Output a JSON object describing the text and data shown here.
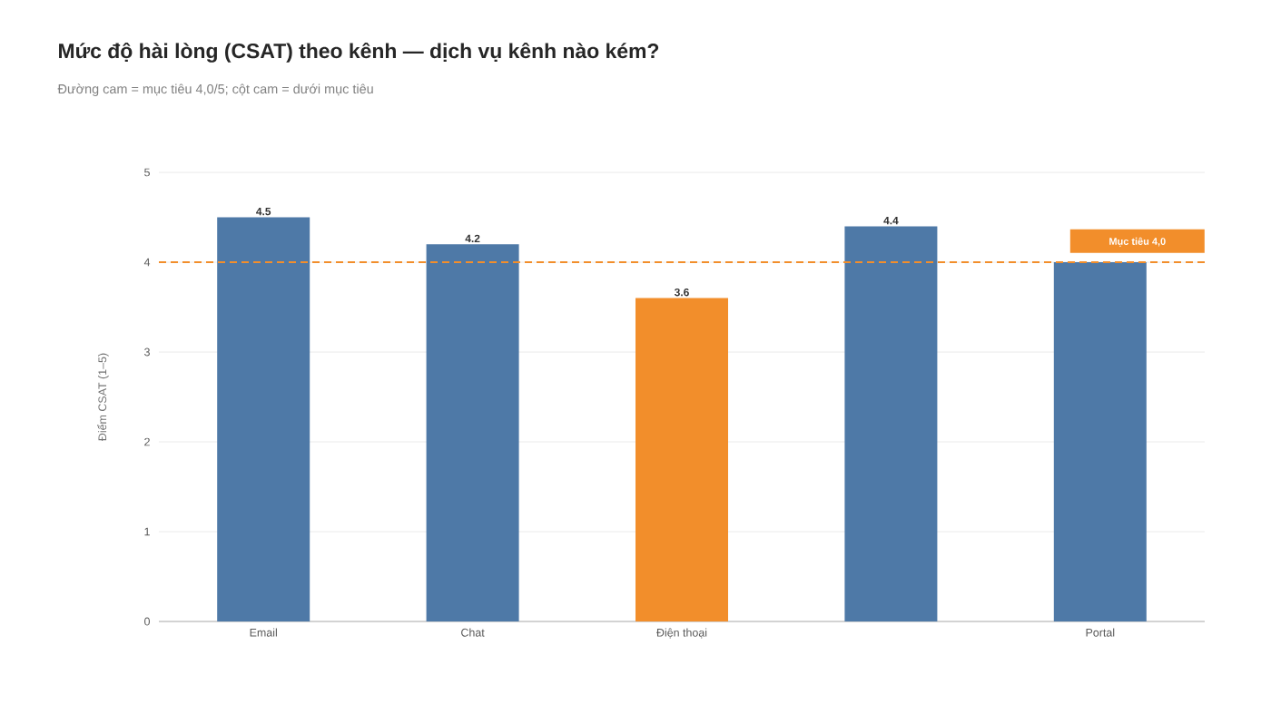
{
  "chart_data": {
    "type": "bar",
    "title": "Mức độ hài lòng (CSAT) theo kênh — dịch vụ kênh nào kém?",
    "subtitle": "Đường cam = mục tiêu 4,0/5; cột cam = dưới mục tiêu",
    "ylabel": "Điểm CSAT (1–5)",
    "categories": [
      "Email",
      "Chat",
      "Điện thoại",
      null,
      "Portal"
    ],
    "values": [
      4.5,
      4.2,
      3.6,
      4.4,
      4.0
    ],
    "colors": [
      "#4e79a7",
      "#4e79a7",
      "#f28e2b",
      "#4e79a7",
      "#4e79a7"
    ],
    "value_labels": [
      "4.5",
      "4.2",
      "3.6",
      "4.4",
      null
    ],
    "ylim": [
      0,
      5
    ],
    "yticks": [
      0,
      1,
      2,
      3,
      4,
      5
    ],
    "grid": "y",
    "ref_lines": [
      {
        "axis": "y",
        "value": 4,
        "label": "Mục tiêu 4,0",
        "color": "#f28e2b",
        "line_style": "dashed"
      }
    ]
  }
}
